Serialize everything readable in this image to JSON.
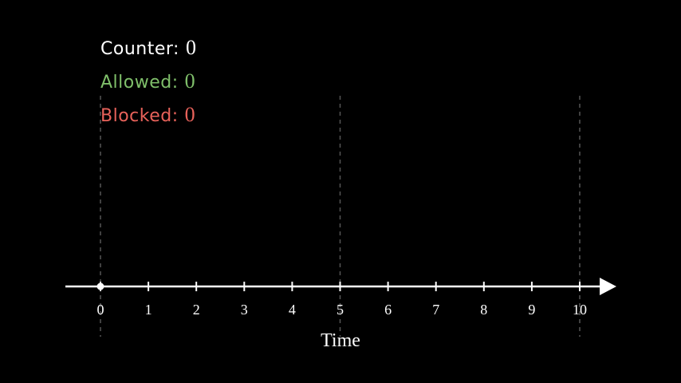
{
  "stats": {
    "counter": {
      "label": "Counter:",
      "value": "0",
      "color": "#ffffff"
    },
    "allowed": {
      "label": "Allowed:",
      "value": "0",
      "color": "#7fbf6a"
    },
    "blocked": {
      "label": "Blocked:",
      "value": "0",
      "color": "#e8625a"
    }
  },
  "timeline": {
    "axis_title": "Time",
    "ticks": [
      "0",
      "1",
      "2",
      "3",
      "4",
      "5",
      "6",
      "7",
      "8",
      "9",
      "10"
    ],
    "window_boundaries": [
      0,
      5,
      10
    ],
    "current_time": 0
  },
  "colors": {
    "background": "#000000",
    "axis": "#ffffff",
    "window_line": "#555555"
  }
}
